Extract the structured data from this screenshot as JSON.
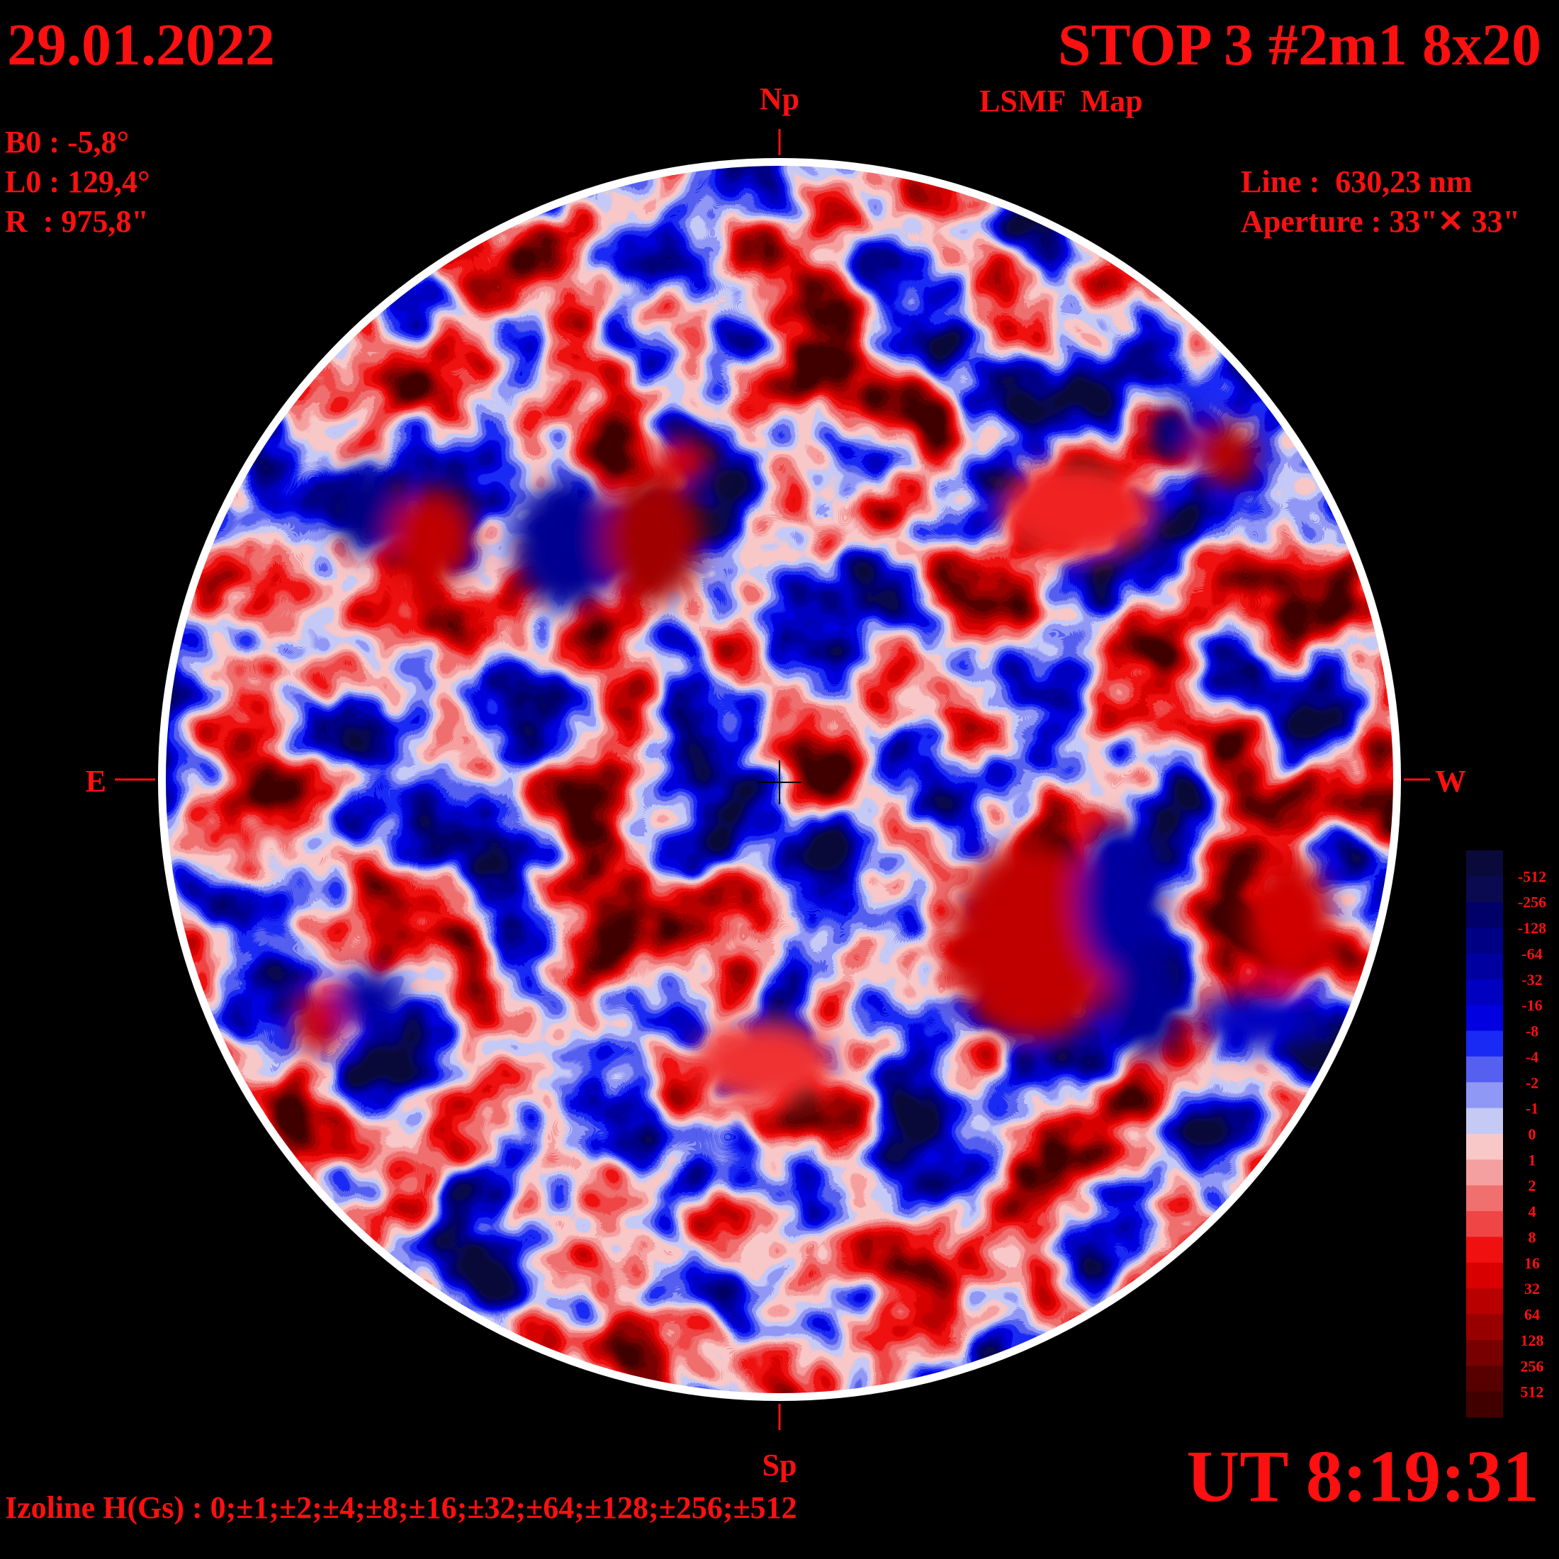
{
  "header": {
    "date": "29.01.2022",
    "title": "STOP 3 #2m1 8x20",
    "subtitle": "LSMF  Map"
  },
  "parameters": [
    "B0 : -5,8°",
    "L0 : 129,4°",
    "R  : 975,8\""
  ],
  "instrument": [
    "Line :  630,23 nm",
    "Aperture : 33\"✕ 33\""
  ],
  "directions": {
    "north": "Np",
    "south": "Sp",
    "east": "E",
    "west": "W"
  },
  "colorbar": {
    "labels": [
      -512,
      -256,
      -128,
      -64,
      -32,
      -16,
      -8,
      -4,
      -2,
      -1,
      0,
      1,
      2,
      4,
      8,
      16,
      32,
      64,
      128,
      256,
      512
    ],
    "colors": [
      "#0a0a3a",
      "#0a0a50",
      "#000068",
      "#000085",
      "#0000a0",
      "#0000c0",
      "#0000e0",
      "#1a2af5",
      "#5560f0",
      "#9098f5",
      "#c5caf5",
      "#f8c8c8",
      "#f5a0a0",
      "#f07070",
      "#f04545",
      "#f01010",
      "#d80000",
      "#b80000",
      "#980000",
      "#780000",
      "#580000",
      "#400000"
    ]
  },
  "izoline": "Izoline H(Gs) : 0;±1;±2;±4;±8;±16;±32;±64;±128;±256;±512",
  "time": "UT 8:19:31"
}
